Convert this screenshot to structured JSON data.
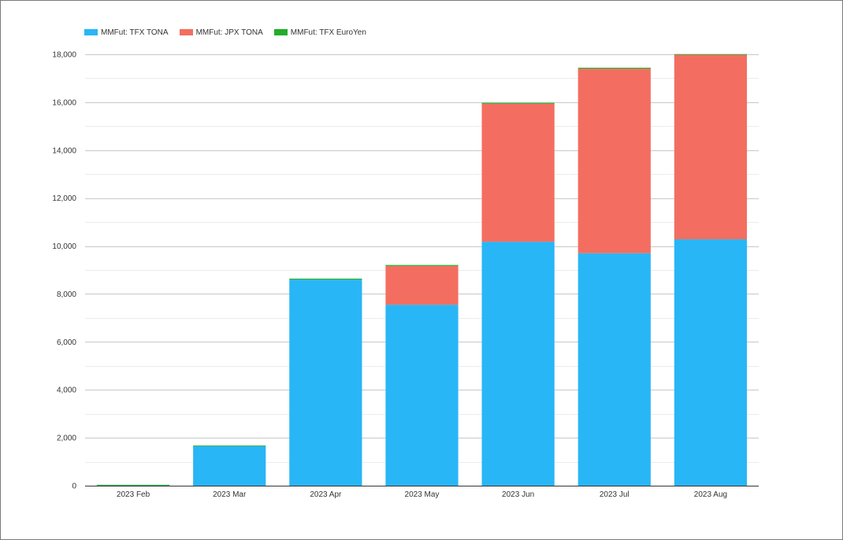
{
  "chart_data": {
    "type": "bar",
    "stacked": true,
    "title": "",
    "xlabel": "",
    "ylabel": "",
    "categories": [
      "2023 Feb",
      "2023 Mar",
      "2023 Apr",
      "2023 May",
      "2023 Jun",
      "2023 Jul",
      "2023 Aug"
    ],
    "series": [
      {
        "name": "MMFut: TFX TONA",
        "color": "#29b6f6",
        "values": [
          10,
          1650,
          8600,
          7550,
          10180,
          9700,
          10280
        ]
      },
      {
        "name": "MMFut: JPX TONA",
        "color": "#f36e60",
        "values": [
          0,
          0,
          0,
          1620,
          5760,
          7700,
          7700
        ]
      },
      {
        "name": "MMFut: TFX EuroYen",
        "color": "#22ad2a",
        "values": [
          30,
          30,
          40,
          40,
          40,
          40,
          30
        ]
      }
    ],
    "ylim": [
      0,
      18000
    ],
    "yticks": [
      0,
      2000,
      4000,
      6000,
      8000,
      10000,
      12000,
      14000,
      16000,
      18000
    ],
    "ytick_labels": [
      "0",
      "2,000",
      "4,000",
      "6,000",
      "8,000",
      "10,000",
      "12,000",
      "14,000",
      "16,000",
      "18,000"
    ],
    "grid": true,
    "legend_position": "top-left"
  }
}
